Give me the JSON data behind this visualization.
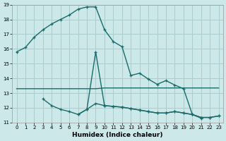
{
  "xlabel": "Humidex (Indice chaleur)",
  "bg_color": "#cce8e8",
  "grid_color": "#aacccc",
  "line_color": "#1a6b6b",
  "xlim": [
    -0.5,
    23.5
  ],
  "ylim": [
    11,
    19
  ],
  "xticks": [
    0,
    1,
    2,
    3,
    4,
    5,
    6,
    7,
    8,
    9,
    10,
    11,
    12,
    13,
    14,
    15,
    16,
    17,
    18,
    19,
    20,
    21,
    22,
    23
  ],
  "yticks": [
    11,
    12,
    13,
    14,
    15,
    16,
    17,
    18,
    19
  ],
  "curve1_x": [
    0,
    1,
    2,
    3,
    4,
    5,
    6,
    7,
    8,
    9,
    10,
    11,
    12,
    13,
    14,
    15,
    16,
    17,
    18,
    19,
    20,
    21
  ],
  "curve1_y": [
    15.8,
    16.1,
    16.8,
    17.3,
    17.7,
    18.0,
    18.3,
    18.7,
    18.85,
    18.85,
    17.3,
    16.5,
    16.15,
    14.2,
    14.35,
    13.95,
    13.6,
    13.85,
    13.55,
    13.3,
    11.55,
    11.3
  ],
  "curve2_x": [
    0,
    1,
    2,
    3,
    4,
    5,
    6,
    7,
    8,
    9,
    10,
    11,
    12,
    13,
    14,
    15,
    16,
    17,
    18,
    19,
    20,
    21,
    22,
    23
  ],
  "curve2_y": [
    13.3,
    13.3,
    13.3,
    13.3,
    13.3,
    13.3,
    13.3,
    13.3,
    13.3,
    13.3,
    13.35,
    13.35,
    13.35,
    13.35,
    13.35,
    13.35,
    13.35,
    13.35,
    13.35,
    13.35,
    13.35,
    13.35,
    13.35,
    13.35
  ],
  "curve3_x": [
    7,
    8,
    9,
    10,
    11,
    12,
    13,
    14,
    15,
    16,
    17,
    18,
    19,
    20,
    21,
    22,
    23
  ],
  "curve3_y": [
    11.55,
    11.9,
    15.8,
    12.15,
    12.1,
    12.05,
    11.95,
    11.85,
    11.75,
    11.65,
    11.65,
    11.75,
    11.65,
    11.55,
    11.35,
    11.35,
    11.45
  ],
  "curve4_x": [
    3,
    4,
    5,
    6,
    7,
    8,
    9,
    10,
    11,
    12,
    13,
    14,
    15,
    16,
    17,
    18,
    19,
    20,
    21,
    22,
    23
  ],
  "curve4_y": [
    12.6,
    12.15,
    11.9,
    11.75,
    11.55,
    11.9,
    12.3,
    12.15,
    12.1,
    12.05,
    11.95,
    11.85,
    11.75,
    11.65,
    11.65,
    11.75,
    11.65,
    11.55,
    11.35,
    11.35,
    11.45
  ]
}
